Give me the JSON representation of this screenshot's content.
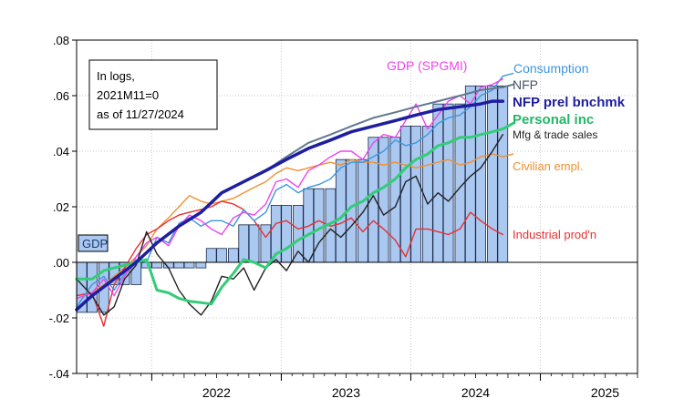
{
  "chart_data": {
    "type": "line",
    "title": "",
    "xlabel": "",
    "ylabel": "",
    "xlim": [
      2021.42,
      2025.75
    ],
    "ylim": [
      -0.04,
      0.08
    ],
    "grid": true,
    "y_ticks": [
      -0.04,
      -0.02,
      0.0,
      0.02,
      0.04,
      0.06,
      0.08
    ],
    "y_tick_labels": [
      "-.04",
      "-.02",
      ".00",
      ".02",
      ".04",
      ".06",
      ".08"
    ],
    "x_ticks": [
      2022,
      2023,
      2024,
      2025
    ],
    "x_tick_labels": [
      "2022",
      "2023",
      "2024",
      "2025"
    ],
    "annotation_box": [
      "In logs,",
      "2021M11=0",
      "as of 11/27/2024"
    ],
    "gdp_bars": {
      "name": "GDP",
      "color": "#aac8f0",
      "x": [
        2021.46,
        2021.54,
        2021.63,
        2021.71,
        2021.79,
        2021.88,
        2021.96,
        2022.04,
        2022.13,
        2022.21,
        2022.29,
        2022.38,
        2022.46,
        2022.54,
        2022.63,
        2022.71,
        2022.79,
        2022.88,
        2022.96,
        2023.04,
        2023.13,
        2023.21,
        2023.29,
        2023.38,
        2023.46,
        2023.54,
        2023.63,
        2023.71,
        2023.79,
        2023.88,
        2023.96,
        2024.04,
        2024.13,
        2024.21,
        2024.29,
        2024.38,
        2024.46,
        2024.54,
        2024.63,
        2024.71
      ],
      "values": [
        -0.018,
        -0.018,
        -0.018,
        -0.008,
        -0.008,
        -0.008,
        -0.002,
        -0.002,
        -0.002,
        -0.002,
        -0.002,
        -0.002,
        0.005,
        0.005,
        0.005,
        0.0135,
        0.0135,
        0.0135,
        0.0205,
        0.0205,
        0.0205,
        0.0265,
        0.0265,
        0.0265,
        0.037,
        0.037,
        0.037,
        0.045,
        0.045,
        0.045,
        0.049,
        0.049,
        0.049,
        0.057,
        0.057,
        0.057,
        0.0635,
        0.0635,
        0.0635,
        0.0635
      ]
    },
    "series": [
      {
        "name": "NFP prel bnchmk",
        "color": "#1e1ea0",
        "width": 3.5,
        "x": [
          2021.42,
          2021.54,
          2021.71,
          2021.88,
          2022.04,
          2022.21,
          2022.38,
          2022.54,
          2022.71,
          2022.88,
          2023.04,
          2023.21,
          2023.38,
          2023.54,
          2023.71,
          2023.88,
          2024.04,
          2024.21,
          2024.38,
          2024.54,
          2024.63,
          2024.71
        ],
        "values": [
          -0.017,
          -0.012,
          -0.006,
          0.0,
          0.007,
          0.013,
          0.018,
          0.025,
          0.029,
          0.033,
          0.037,
          0.041,
          0.044,
          0.047,
          0.049,
          0.051,
          0.053,
          0.055,
          0.056,
          0.057,
          0.058,
          0.058
        ]
      },
      {
        "name": "NFP",
        "color": "#607890",
        "width": 2.0,
        "x": [
          2021.42,
          2021.54,
          2021.71,
          2021.88,
          2022.04,
          2022.21,
          2022.38,
          2022.54,
          2022.71,
          2022.88,
          2023.04,
          2023.21,
          2023.38,
          2023.54,
          2023.71,
          2023.88,
          2024.04,
          2024.21,
          2024.38,
          2024.54,
          2024.71,
          2024.79
        ],
        "values": [
          -0.017,
          -0.012,
          -0.006,
          0.0,
          0.007,
          0.013,
          0.018,
          0.025,
          0.029,
          0.033,
          0.038,
          0.043,
          0.046,
          0.049,
          0.052,
          0.054,
          0.056,
          0.058,
          0.06,
          0.062,
          0.063,
          0.064
        ]
      },
      {
        "name": "Consumption",
        "color": "#3d96e0",
        "width": 1.4,
        "x": [
          2021.42,
          2021.54,
          2021.63,
          2021.71,
          2021.79,
          2021.88,
          2021.96,
          2022.04,
          2022.13,
          2022.21,
          2022.29,
          2022.38,
          2022.46,
          2022.54,
          2022.63,
          2022.71,
          2022.79,
          2022.88,
          2022.96,
          2023.04,
          2023.13,
          2023.21,
          2023.29,
          2023.38,
          2023.46,
          2023.54,
          2023.63,
          2023.71,
          2023.79,
          2023.88,
          2023.96,
          2024.04,
          2024.13,
          2024.21,
          2024.29,
          2024.38,
          2024.46,
          2024.54,
          2024.63,
          2024.71,
          2024.79
        ],
        "values": [
          -0.016,
          -0.008,
          -0.005,
          -0.01,
          -0.004,
          0.001,
          0.0,
          0.009,
          0.007,
          0.014,
          0.016,
          0.013,
          0.015,
          0.015,
          0.013,
          0.019,
          0.015,
          0.018,
          0.026,
          0.028,
          0.025,
          0.027,
          0.028,
          0.03,
          0.034,
          0.036,
          0.036,
          0.038,
          0.04,
          0.044,
          0.042,
          0.043,
          0.046,
          0.05,
          0.052,
          0.053,
          0.056,
          0.06,
          0.062,
          0.067,
          0.068
        ]
      },
      {
        "name": "GDP (SPGMI)",
        "color": "#ee44ee",
        "width": 1.4,
        "x": [
          2021.42,
          2021.54,
          2021.63,
          2021.71,
          2021.79,
          2021.88,
          2021.96,
          2022.04,
          2022.13,
          2022.21,
          2022.29,
          2022.38,
          2022.46,
          2022.54,
          2022.63,
          2022.71,
          2022.79,
          2022.88,
          2022.96,
          2023.04,
          2023.13,
          2023.21,
          2023.29,
          2023.38,
          2023.46,
          2023.54,
          2023.63,
          2023.71,
          2023.79,
          2023.88,
          2023.96,
          2024.04,
          2024.13,
          2024.21,
          2024.29,
          2024.38,
          2024.46,
          2024.54,
          2024.63,
          2024.71
        ],
        "values": [
          -0.013,
          -0.011,
          -0.006,
          -0.012,
          -0.005,
          0.002,
          0.007,
          0.009,
          0.006,
          0.013,
          0.017,
          0.015,
          0.012,
          0.01,
          0.016,
          0.018,
          0.017,
          0.021,
          0.029,
          0.03,
          0.027,
          0.033,
          0.035,
          0.038,
          0.04,
          0.04,
          0.037,
          0.043,
          0.046,
          0.045,
          0.051,
          0.057,
          0.048,
          0.053,
          0.058,
          0.06,
          0.057,
          0.063,
          0.064,
          0.066
        ]
      },
      {
        "name": "Personal inc",
        "color": "#33cc77",
        "width": 3.0,
        "x": [
          2021.42,
          2021.54,
          2021.63,
          2021.71,
          2021.79,
          2021.88,
          2021.96,
          2022.04,
          2022.13,
          2022.21,
          2022.29,
          2022.38,
          2022.46,
          2022.54,
          2022.63,
          2022.71,
          2022.79,
          2022.88,
          2022.96,
          2023.04,
          2023.13,
          2023.21,
          2023.29,
          2023.38,
          2023.46,
          2023.54,
          2023.63,
          2023.71,
          2023.79,
          2023.88,
          2023.96,
          2024.04,
          2024.13,
          2024.21,
          2024.29,
          2024.38,
          2024.46,
          2024.54,
          2024.63,
          2024.71,
          2024.79
        ],
        "values": [
          -0.006,
          -0.006,
          -0.003,
          -0.002,
          -0.001,
          0.0,
          0.001,
          -0.01,
          -0.011,
          -0.013,
          -0.014,
          -0.0145,
          -0.015,
          -0.009,
          -0.004,
          0.001,
          0.0,
          -0.002,
          0.003,
          0.005,
          0.008,
          0.01,
          0.012,
          0.014,
          0.016,
          0.02,
          0.022,
          0.025,
          0.027,
          0.03,
          0.034,
          0.037,
          0.039,
          0.042,
          0.043,
          0.045,
          0.045,
          0.046,
          0.047,
          0.048,
          0.05
        ]
      },
      {
        "name": "Mfg & trade sales",
        "color": "#222222",
        "width": 1.4,
        "x": [
          2021.42,
          2021.54,
          2021.63,
          2021.71,
          2021.79,
          2021.88,
          2021.96,
          2022.04,
          2022.13,
          2022.21,
          2022.29,
          2022.38,
          2022.46,
          2022.54,
          2022.63,
          2022.71,
          2022.79,
          2022.88,
          2022.96,
          2023.04,
          2023.13,
          2023.21,
          2023.29,
          2023.38,
          2023.46,
          2023.54,
          2023.63,
          2023.71,
          2023.79,
          2023.88,
          2023.96,
          2024.04,
          2024.13,
          2024.21,
          2024.29,
          2024.38,
          2024.46,
          2024.54,
          2024.63,
          2024.71
        ],
        "values": [
          -0.006,
          -0.012,
          -0.019,
          -0.016,
          -0.006,
          -0.001,
          0.011,
          0.003,
          -0.002,
          -0.01,
          -0.015,
          -0.019,
          -0.014,
          -0.005,
          -0.006,
          -0.002,
          -0.01,
          -0.002,
          0.001,
          -0.003,
          0.004,
          0.0,
          0.007,
          0.012,
          0.009,
          0.013,
          0.018,
          0.024,
          0.017,
          0.02,
          0.029,
          0.031,
          0.021,
          0.025,
          0.022,
          0.027,
          0.031,
          0.034,
          0.04,
          0.046
        ]
      },
      {
        "name": "Civilian empl.",
        "color": "#f09030",
        "width": 1.4,
        "x": [
          2021.42,
          2021.54,
          2021.63,
          2021.71,
          2021.79,
          2021.88,
          2021.96,
          2022.04,
          2022.13,
          2022.21,
          2022.29,
          2022.38,
          2022.46,
          2022.54,
          2022.63,
          2022.71,
          2022.79,
          2022.88,
          2022.96,
          2023.04,
          2023.13,
          2023.21,
          2023.29,
          2023.38,
          2023.46,
          2023.54,
          2023.63,
          2023.71,
          2023.79,
          2023.88,
          2023.96,
          2024.04,
          2024.13,
          2024.21,
          2024.29,
          2024.38,
          2024.46,
          2024.54,
          2024.63,
          2024.71,
          2024.79
        ],
        "values": [
          -0.013,
          -0.011,
          -0.008,
          -0.005,
          -0.002,
          0.002,
          0.006,
          0.012,
          0.016,
          0.02,
          0.024,
          0.022,
          0.021,
          0.022,
          0.023,
          0.025,
          0.027,
          0.029,
          0.032,
          0.034,
          0.033,
          0.034,
          0.035,
          0.036,
          0.035,
          0.037,
          0.036,
          0.036,
          0.035,
          0.036,
          0.035,
          0.034,
          0.035,
          0.036,
          0.037,
          0.035,
          0.036,
          0.038,
          0.039,
          0.038,
          0.039
        ]
      },
      {
        "name": "Industrial prod'n",
        "color": "#e83030",
        "width": 1.4,
        "x": [
          2021.42,
          2021.54,
          2021.63,
          2021.71,
          2021.79,
          2021.88,
          2021.96,
          2022.04,
          2022.13,
          2022.21,
          2022.29,
          2022.38,
          2022.46,
          2022.54,
          2022.63,
          2022.71,
          2022.79,
          2022.88,
          2022.96,
          2023.04,
          2023.13,
          2023.21,
          2023.29,
          2023.38,
          2023.46,
          2023.54,
          2023.63,
          2023.71,
          2023.79,
          2023.88,
          2023.96,
          2024.04,
          2024.13,
          2024.21,
          2024.29,
          2024.38,
          2024.46,
          2024.54,
          2024.63,
          2024.71
        ],
        "values": [
          -0.012,
          -0.011,
          -0.023,
          -0.008,
          -0.002,
          0.005,
          0.01,
          0.012,
          0.015,
          0.017,
          0.018,
          0.019,
          0.02,
          0.022,
          0.021,
          0.019,
          0.015,
          0.009,
          0.014,
          0.015,
          0.012,
          0.013,
          0.015,
          0.013,
          0.014,
          0.016,
          0.011,
          0.015,
          0.012,
          0.008,
          0.002,
          0.012,
          0.012,
          0.011,
          0.01,
          0.012,
          0.018,
          0.015,
          0.012,
          0.01
        ]
      }
    ],
    "series_label_colors": {
      "GDP (SPGMI)": "#ee44ee",
      "Consumption": "#3d96e0",
      "NFP": "#445566",
      "NFP prel bnchmk": "#1e1ea0",
      "Personal inc": "#22b866",
      "Mfg & trade sales": "#222222",
      "Civilian empl.": "#f09030",
      "Industrial prod'n": "#e83030",
      "GDP": "#1a3a6a"
    }
  }
}
